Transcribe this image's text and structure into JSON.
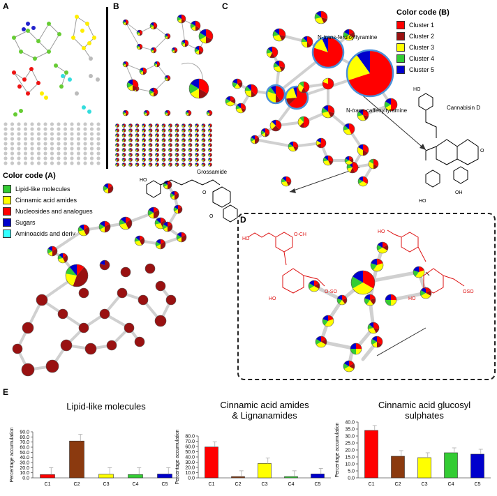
{
  "panels": {
    "a": "A",
    "b": "B",
    "c": "C",
    "d": "D",
    "e": "E"
  },
  "legend_a": {
    "title": "Color code (A)",
    "items": [
      {
        "label": "Lipid-like molecules",
        "color": "#33cc33"
      },
      {
        "label": "Cinnamic acid amides",
        "color": "#ffff00"
      },
      {
        "label": "Nucleosides and analogues",
        "color": "#ff0000"
      },
      {
        "label": "Sugars",
        "color": "#0000cc"
      },
      {
        "label": "Aminoacids and deriv.",
        "color": "#33ffff"
      }
    ]
  },
  "legend_b": {
    "title": "Color code (B)",
    "items": [
      {
        "label": "Cluster 1",
        "color": "#ff0000"
      },
      {
        "label": "Cluster 2",
        "color": "#991111"
      },
      {
        "label": "Cluster 3",
        "color": "#ffff00"
      },
      {
        "label": "Cluster 4",
        "color": "#33cc33"
      },
      {
        "label": "Cluster 5",
        "color": "#0000cc"
      }
    ]
  },
  "compounds": {
    "feruloyl_pre": "N-",
    "feruloyl_italic": "trans",
    "feruloyl_post": "-feruloyltyramine",
    "caffeoyl_pre": "N-",
    "caffeoyl_italic": "trans",
    "caffeoyl_post": "-caffeoyltyramine",
    "cannabisin": "Cannabisin D",
    "grossamide": "Grossamide"
  },
  "chart_data": [
    {
      "type": "bar",
      "title": "Lipid-like molecules",
      "ylabel": "Percentage accumulation",
      "categories": [
        "C1",
        "C2",
        "C3",
        "C4",
        "C5"
      ],
      "values": [
        6.5,
        72.0,
        7.0,
        6.5,
        7.5
      ],
      "errors": [
        13.5,
        13.0,
        13.0,
        13.5,
        12.5
      ],
      "ylim": [
        0,
        90
      ],
      "yticks": [
        "0.0",
        "10.0",
        "20.0",
        "30.0",
        "40.0",
        "50.0",
        "60.0",
        "70.0",
        "80.0",
        "90.0"
      ]
    },
    {
      "type": "bar",
      "title_lines": [
        "Cinnamic acid amides",
        "& Lignanamides"
      ],
      "ylabel": "Percentage accumulation",
      "categories": [
        "C1",
        "C2",
        "C3",
        "C4",
        "C5"
      ],
      "values": [
        59.0,
        2.5,
        27.5,
        2.5,
        7.5
      ],
      "errors": [
        10.0,
        11.0,
        10.5,
        11.0,
        10.5
      ],
      "ylim": [
        0,
        80
      ],
      "yticks": [
        "0.0",
        "10.0",
        "20.0",
        "30.0",
        "40.0",
        "50.0",
        "60.0",
        "70.0",
        "80.0"
      ]
    },
    {
      "type": "bar",
      "title_lines": [
        "Cinnamic acid glucosyl",
        "sulphates"
      ],
      "ylabel": "Percentage accumulation",
      "categories": [
        "C1",
        "C2",
        "C3",
        "C4",
        "C5"
      ],
      "values": [
        34.0,
        15.5,
        14.5,
        18.0,
        17.0
      ],
      "errors": [
        3.5,
        4.0,
        3.5,
        3.5,
        3.5
      ],
      "ylim": [
        0,
        40
      ],
      "yticks": [
        "0.0",
        "5.0",
        "10.0",
        "15.0",
        "20.0",
        "25.0",
        "30.0",
        "35.0",
        "40.0"
      ]
    }
  ],
  "bar_colors": [
    "#ff0000",
    "#8b3a0f",
    "#ffff00",
    "#33cc33",
    "#0000cc"
  ]
}
